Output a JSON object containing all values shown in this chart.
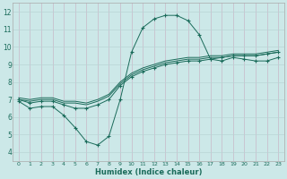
{
  "xlabel": "Humidex (Indice chaleur)",
  "xlim": [
    -0.5,
    23.5
  ],
  "ylim": [
    3.5,
    12.5
  ],
  "xticks": [
    0,
    1,
    2,
    3,
    4,
    5,
    6,
    7,
    8,
    9,
    10,
    11,
    12,
    13,
    14,
    15,
    16,
    17,
    18,
    19,
    20,
    21,
    22,
    23
  ],
  "yticks": [
    4,
    5,
    6,
    7,
    8,
    9,
    10,
    11,
    12
  ],
  "bg_color": "#cce8e8",
  "grid_color_h": "#b8d4d4",
  "grid_color_v": "#c8b8c8",
  "line_color": "#1a6b5a",
  "lines": [
    {
      "x": [
        0,
        1,
        2,
        3,
        4,
        5,
        6,
        7,
        8,
        9,
        10,
        11,
        12,
        13,
        14,
        15,
        16,
        17,
        18,
        19,
        20,
        21,
        22,
        23
      ],
      "y": [
        6.9,
        6.5,
        6.6,
        6.6,
        6.1,
        5.4,
        4.6,
        4.4,
        4.9,
        7.0,
        9.7,
        11.1,
        11.6,
        11.8,
        11.8,
        11.5,
        10.7,
        9.3,
        9.2,
        9.4,
        9.3,
        9.2,
        9.2,
        9.4
      ],
      "marker": true
    },
    {
      "x": [
        0,
        1,
        2,
        3,
        4,
        5,
        6,
        7,
        8,
        9,
        10,
        11,
        12,
        13,
        14,
        15,
        16,
        17,
        18,
        19,
        20,
        21,
        22,
        23
      ],
      "y": [
        7.0,
        6.8,
        6.9,
        6.9,
        6.7,
        6.5,
        6.5,
        6.7,
        7.0,
        7.8,
        8.3,
        8.6,
        8.8,
        9.0,
        9.1,
        9.2,
        9.2,
        9.3,
        9.4,
        9.5,
        9.5,
        9.5,
        9.6,
        9.7
      ],
      "marker": true
    },
    {
      "x": [
        0,
        1,
        2,
        3,
        4,
        5,
        6,
        7,
        8,
        9,
        10,
        11,
        12,
        13,
        14,
        15,
        16,
        17,
        18,
        19,
        20,
        21,
        22,
        23
      ],
      "y": [
        7.0,
        6.9,
        7.0,
        7.0,
        6.8,
        6.8,
        6.7,
        6.9,
        7.2,
        7.9,
        8.4,
        8.7,
        8.9,
        9.1,
        9.2,
        9.3,
        9.3,
        9.4,
        9.4,
        9.5,
        9.5,
        9.5,
        9.6,
        9.7
      ],
      "marker": false
    },
    {
      "x": [
        0,
        1,
        2,
        3,
        4,
        5,
        6,
        7,
        8,
        9,
        10,
        11,
        12,
        13,
        14,
        15,
        16,
        17,
        18,
        19,
        20,
        21,
        22,
        23
      ],
      "y": [
        7.1,
        7.0,
        7.1,
        7.1,
        6.9,
        6.9,
        6.8,
        7.0,
        7.3,
        8.0,
        8.5,
        8.8,
        9.0,
        9.2,
        9.3,
        9.4,
        9.4,
        9.5,
        9.5,
        9.6,
        9.6,
        9.6,
        9.7,
        9.8
      ],
      "marker": false
    }
  ]
}
